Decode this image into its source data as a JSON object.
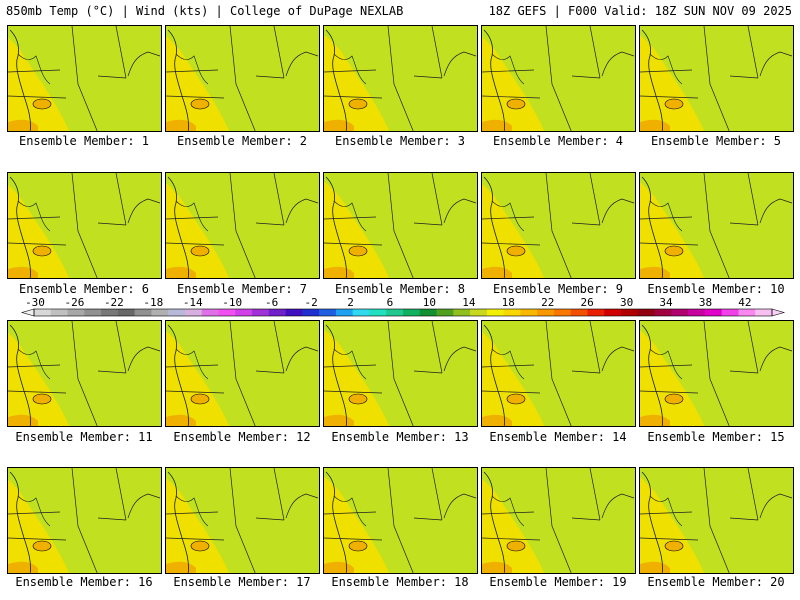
{
  "header": {
    "title_left": "850mb Temp (°C) | Wind (kts) | College of DuPage NEXLAB",
    "title_right": "18Z GEFS | F000 Valid: 18Z SUN NOV 09 2025"
  },
  "members": [
    "Ensemble Member: 1",
    "Ensemble Member: 2",
    "Ensemble Member: 3",
    "Ensemble Member: 4",
    "Ensemble Member: 5",
    "Ensemble Member: 6",
    "Ensemble Member: 7",
    "Ensemble Member: 8",
    "Ensemble Member: 9",
    "Ensemble Member: 10",
    "Ensemble Member: 11",
    "Ensemble Member: 12",
    "Ensemble Member: 13",
    "Ensemble Member: 14",
    "Ensemble Member: 15",
    "Ensemble Member: 16",
    "Ensemble Member: 17",
    "Ensemble Member: 18",
    "Ensemble Member: 19",
    "Ensemble Member: 20"
  ],
  "colorbar": {
    "labels": [
      "-30",
      "-26",
      "-22",
      "-18",
      "-14",
      "-10",
      "-6",
      "-2",
      "2",
      "6",
      "10",
      "14",
      "18",
      "22",
      "26",
      "30",
      "34",
      "38",
      "42"
    ],
    "colors": [
      "#d8d8d8",
      "#c0c0c0",
      "#a8a8a8",
      "#909090",
      "#787878",
      "#686868",
      "#909090",
      "#b0b0b0",
      "#b8b8d8",
      "#d8b0e0",
      "#e070e8",
      "#f050f0",
      "#d040e8",
      "#a030d8",
      "#7020c8",
      "#4010c0",
      "#2030d0",
      "#2060e0",
      "#20a0f0",
      "#30d8f0",
      "#20e0c0",
      "#20c890",
      "#10b060",
      "#109030",
      "#50a020",
      "#90c020",
      "#c8d820",
      "#f0f000",
      "#f8d800",
      "#f8b800",
      "#f89800",
      "#f87800",
      "#f05000",
      "#e82000",
      "#d00000",
      "#b00000",
      "#900010",
      "#a00040",
      "#b00070",
      "#c800a0",
      "#e000c8",
      "#f040e8",
      "#f888f0",
      "#f8c0f0"
    ]
  },
  "palette": {
    "yellow": "#f0e000",
    "orange": "#f0b000",
    "lime": "#c0e020",
    "light_green": "#70c030",
    "green": "#20a030",
    "teal": "#10b890",
    "cyan": "#20d8e0",
    "sky": "#20a8f0",
    "blue": "#2050e0",
    "indigo": "#4020c8",
    "purple": "#9030e0",
    "violet": "#c040e8",
    "magenta": "#e040f0"
  }
}
